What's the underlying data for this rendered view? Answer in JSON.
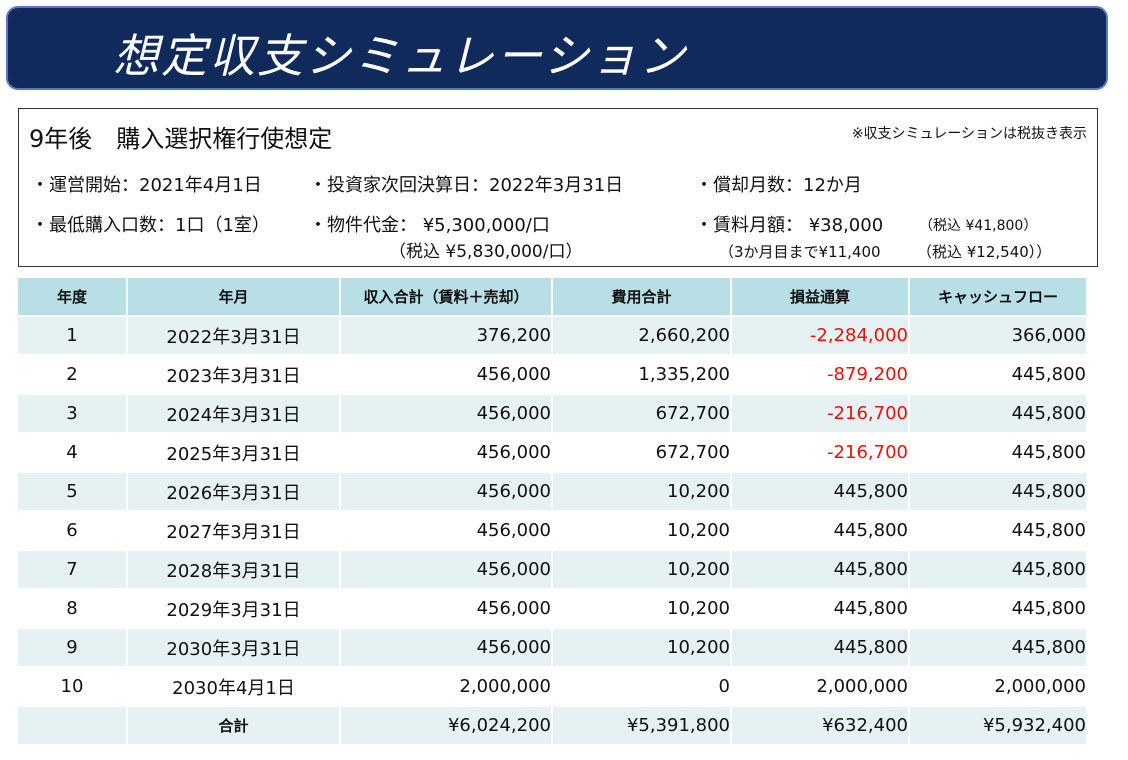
{
  "header": {
    "title": "想定収支シミュレーション"
  },
  "info": {
    "title": "9年後　購入選択権行使想定",
    "note": "※収支シミュレーションは税抜き表示",
    "operation_start": "・運営開始：2021年4月1日",
    "next_settlement": "・投資家次回決算日：2022年3月31日",
    "depreciation": "・償却月数：12か月",
    "min_units": "・最低購入口数：1口（1室）",
    "price": "・物件代金： ¥5,300,000/口",
    "price_tax": "（税込 ¥5,830,000/口）",
    "rent": "・賃料月額： ¥38,000",
    "rent_tax": "（税込 ¥41,800）",
    "rent_initial": "（3か月目まで¥11,400",
    "rent_initial_tax": "（税込 ¥12,540））"
  },
  "table": {
    "columns": [
      "年度",
      "年月",
      "収入合計（賃料＋売却）",
      "費用合計",
      "損益通算",
      "キャッシュフロー"
    ],
    "rows": [
      [
        "1",
        "2022年3月31日",
        "376,200",
        "2,660,200",
        "-2,284,000",
        "366,000"
      ],
      [
        "2",
        "2023年3月31日",
        "456,000",
        "1,335,200",
        "-879,200",
        "445,800"
      ],
      [
        "3",
        "2024年3月31日",
        "456,000",
        "672,700",
        "-216,700",
        "445,800"
      ],
      [
        "4",
        "2025年3月31日",
        "456,000",
        "672,700",
        "-216,700",
        "445,800"
      ],
      [
        "5",
        "2026年3月31日",
        "456,000",
        "10,200",
        "445,800",
        "445,800"
      ],
      [
        "6",
        "2027年3月31日",
        "456,000",
        "10,200",
        "445,800",
        "445,800"
      ],
      [
        "7",
        "2028年3月31日",
        "456,000",
        "10,200",
        "445,800",
        "445,800"
      ],
      [
        "8",
        "2029年3月31日",
        "456,000",
        "10,200",
        "445,800",
        "445,800"
      ],
      [
        "9",
        "2030年3月31日",
        "456,000",
        "10,200",
        "445,800",
        "445,800"
      ],
      [
        "10",
        "2030年4月1日",
        "2,000,000",
        "0",
        "2,000,000",
        "2,000,000"
      ]
    ],
    "total": {
      "label": "合計",
      "values": [
        "¥6,024,200",
        "¥5,391,800",
        "¥632,400",
        "¥5,932,400"
      ]
    }
  }
}
